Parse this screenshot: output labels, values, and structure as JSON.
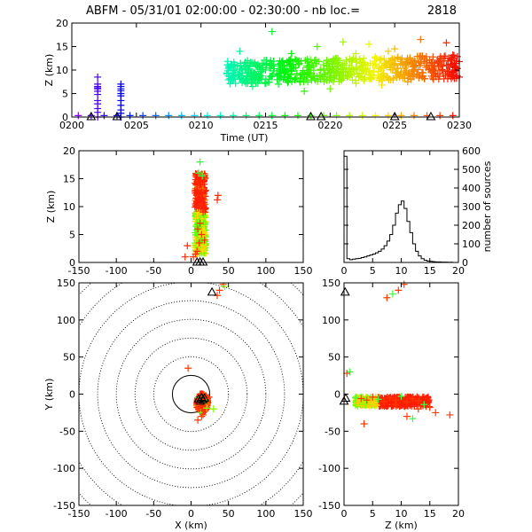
{
  "title_prefix": "ABFM - 05/31/01 02:00:00 - 02:30:00 - nb loc.=",
  "title_count": "2818",
  "chart_data": [
    {
      "id": "time-height",
      "type": "scatter",
      "xlabel": "Time (UT)",
      "ylabel": "Z (km)",
      "x_ticks": [
        "0200",
        "0205",
        "0210",
        "0215",
        "0220",
        "0225",
        "0230"
      ],
      "x_tick_values": [
        0,
        5,
        10,
        15,
        20,
        25,
        30
      ],
      "y_ticks": [
        0,
        5,
        10,
        15,
        20
      ],
      "xlim": [
        0,
        30
      ],
      "ylim": [
        0,
        20
      ],
      "color_by": "time",
      "series": [
        {
          "x": [
            2.0,
            2.0,
            2.0,
            2.0,
            2.0,
            2.0,
            2.0,
            2.0,
            2.0,
            2.0,
            2.0,
            2.0
          ],
          "y": [
            8.5,
            7.0,
            6.5,
            6.2,
            6.0,
            5.5,
            4.8,
            3.5,
            2.8,
            1.8,
            1.0,
            0.0
          ]
        },
        {
          "x": [
            3.8,
            3.8,
            3.8,
            3.8,
            3.8,
            3.8,
            3.8,
            3.8,
            3.8,
            3.8,
            3.8
          ],
          "y": [
            7.0,
            6.5,
            6.0,
            5.6,
            5.0,
            4.5,
            3.5,
            2.5,
            1.5,
            0.8,
            0.0
          ]
        },
        {
          "x": [
            15.5
          ],
          "y": [
            18.2
          ]
        },
        {
          "x": [
            12.2,
            12.5,
            12.8,
            13.0,
            13.5,
            14.0,
            14.5,
            15.0,
            15.5,
            16.0,
            16.5,
            17.0,
            17.5,
            18.0,
            18.5,
            19.0,
            19.5,
            20.0,
            20.5,
            21.0,
            21.5,
            22.0,
            22.5,
            23.0,
            23.5,
            24.0,
            24.5,
            25.0,
            25.5,
            26.0,
            26.5,
            27.0,
            27.5,
            28.0,
            28.5,
            29.0,
            29.5,
            30.0
          ],
          "y": [
            10.5,
            8.5,
            11.0,
            9.8,
            10.2,
            11.5,
            9.0,
            10.0,
            8.8,
            11.2,
            9.5,
            10.8,
            12.0,
            9.2,
            10.5,
            11.8,
            8.5,
            10.2,
            12.5,
            9.8,
            11.0,
            13.5,
            10.4,
            9.0,
            12.8,
            10.6,
            14.0,
            11.2,
            9.6,
            12.2,
            10.8,
            13.0,
            11.5,
            10.0,
            12.5,
            11.0,
            13.2,
            11.8
          ]
        },
        {
          "x": [
            14.0,
            16.0,
            18.0,
            20.0,
            22.0,
            24.0,
            26.0,
            28.0,
            30.0
          ],
          "y": [
            6.5,
            7.0,
            5.5,
            6.0,
            7.2,
            6.8,
            7.5,
            8.0,
            8.5
          ]
        },
        {
          "x": [
            13.0,
            17.0,
            19.0,
            21.0,
            23.0,
            25.0,
            27.0,
            29.0
          ],
          "y": [
            14.0,
            13.5,
            15.0,
            16.0,
            15.5,
            14.5,
            16.5,
            15.8
          ]
        },
        {
          "x": [
            0.5,
            1.5,
            2.5,
            3.5,
            4.5,
            5.5,
            6.5,
            7.5,
            8.5,
            9.5,
            10.5,
            11.5,
            12.5,
            13.5,
            14.5,
            15.5,
            16.5,
            17.5,
            18.5,
            19.5,
            20.5,
            21.5,
            22.5,
            23.5,
            24.5,
            25.5,
            26.5,
            27.5,
            28.5,
            29.5
          ],
          "y": [
            0.3,
            0.3,
            0.3,
            0.3,
            0.3,
            0.3,
            0.3,
            0.3,
            0.3,
            0.3,
            0.3,
            0.3,
            0.3,
            0.3,
            0.3,
            0.3,
            0.3,
            0.3,
            0.3,
            0.3,
            0.3,
            0.3,
            0.3,
            0.3,
            0.3,
            0.3,
            0.3,
            0.3,
            0.3,
            0.3
          ]
        }
      ],
      "stations_x": [
        1.5,
        3.5,
        18.5,
        19.3,
        25.0,
        27.8
      ],
      "stations_y": [
        0,
        0,
        0,
        0,
        0,
        0
      ]
    },
    {
      "id": "x-height",
      "type": "scatter",
      "xlabel": "",
      "ylabel": "Z (km)",
      "x_ticks": [
        -150,
        -100,
        -50,
        0,
        50,
        100,
        150
      ],
      "y_ticks": [
        0,
        5,
        10,
        15,
        20
      ],
      "xlim": [
        -150,
        150
      ],
      "ylim": [
        0,
        20
      ],
      "core_x": [
        5,
        20
      ],
      "core_y": [
        1.5,
        16
      ],
      "points_x": [
        12,
        10,
        15,
        8,
        14,
        36,
        35,
        -5,
        8,
        3,
        -8,
        12,
        14,
        16,
        10,
        6,
        18,
        13,
        9,
        11
      ],
      "points_y": [
        18.0,
        16.0,
        15.5,
        14.5,
        13.0,
        12.0,
        11.2,
        3.0,
        2.0,
        1.0,
        1.0,
        7.0,
        5.0,
        9.0,
        12.0,
        1.5,
        4.0,
        10.0,
        6.0,
        3.5
      ],
      "stations_x": [
        8,
        12,
        16
      ],
      "stations_y": [
        0,
        0,
        0
      ]
    },
    {
      "id": "height-histogram",
      "type": "line",
      "xlabel": "",
      "ylabel": "number of sources",
      "x_ticks": [
        0,
        5,
        10,
        15,
        20
      ],
      "y_ticks": [
        0,
        100,
        200,
        300,
        400,
        500,
        600
      ],
      "xlim": [
        0,
        20
      ],
      "ylim": [
        0,
        600
      ],
      "x": [
        0,
        0.5,
        1,
        1.5,
        2,
        2.5,
        3,
        3.5,
        4,
        4.5,
        5,
        5.5,
        6,
        6.5,
        7,
        7.5,
        8,
        8.5,
        9,
        9.5,
        10,
        10.5,
        11,
        11.5,
        12,
        12.5,
        13,
        13.5,
        14,
        14.5,
        15,
        15.5,
        16,
        16.5,
        17,
        17.5,
        18,
        18.5,
        19,
        19.5
      ],
      "values": [
        570,
        20,
        15,
        18,
        20,
        22,
        26,
        30,
        35,
        40,
        45,
        52,
        60,
        72,
        90,
        115,
        150,
        200,
        265,
        310,
        330,
        290,
        220,
        160,
        100,
        60,
        35,
        20,
        12,
        8,
        6,
        4,
        3,
        3,
        2,
        2,
        1,
        1,
        0,
        0
      ]
    },
    {
      "id": "plan-view",
      "type": "scatter",
      "xlabel": "X (km)",
      "ylabel": "Y (km)",
      "x_ticks": [
        -150,
        -100,
        -50,
        0,
        50,
        100,
        150
      ],
      "y_ticks": [
        -150,
        -100,
        -50,
        0,
        50,
        100,
        150
      ],
      "xlim": [
        -150,
        150
      ],
      "ylim": [
        -150,
        150
      ],
      "range_rings_km": [
        25,
        50,
        75,
        100,
        125,
        150,
        175,
        200
      ],
      "points_x": [
        10,
        14,
        18,
        12,
        16,
        20,
        8,
        22,
        15,
        11,
        13,
        17,
        19,
        9,
        14,
        21,
        -4,
        35,
        38,
        43,
        45,
        12,
        16,
        24,
        9,
        30
      ],
      "points_y": [
        -5,
        -3,
        -8,
        -12,
        -15,
        -10,
        -18,
        -6,
        -2,
        -20,
        -25,
        -22,
        -14,
        -9,
        -30,
        -19,
        35,
        133,
        140,
        148,
        145,
        0,
        -28,
        -4,
        -35,
        -20
      ],
      "stations_x": [
        12,
        16,
        14,
        10,
        18,
        28
      ],
      "stations_y": [
        -10,
        -8,
        -5,
        -7,
        -6,
        137
      ]
    },
    {
      "id": "height-y",
      "type": "scatter",
      "xlabel": "Z (km)",
      "ylabel": "",
      "x_ticks": [
        0,
        5,
        10,
        15,
        20
      ],
      "y_ticks": [
        -150,
        -100,
        -50,
        0,
        50,
        100,
        150
      ],
      "xlim": [
        0,
        20
      ],
      "ylim": [
        -150,
        150
      ],
      "points_x": [
        2,
        3,
        4,
        5,
        6,
        7,
        8,
        9,
        10,
        11,
        12,
        13,
        14,
        15,
        16,
        18.5,
        12,
        9,
        13,
        11,
        8.5,
        9.5,
        10.5,
        7.5,
        1,
        0.5,
        3.5
      ],
      "points_y": [
        -5,
        -6,
        -8,
        -4,
        -7,
        -10,
        -5,
        -8,
        -3,
        -10,
        -6,
        -9,
        -14,
        -18,
        -25,
        -28,
        -33,
        -14,
        -20,
        -30,
        135,
        140,
        148,
        130,
        30,
        28,
        -40
      ],
      "stations_x": [
        0,
        0.3,
        0.2
      ],
      "stations_y": [
        -10,
        -6,
        137
      ]
    }
  ]
}
